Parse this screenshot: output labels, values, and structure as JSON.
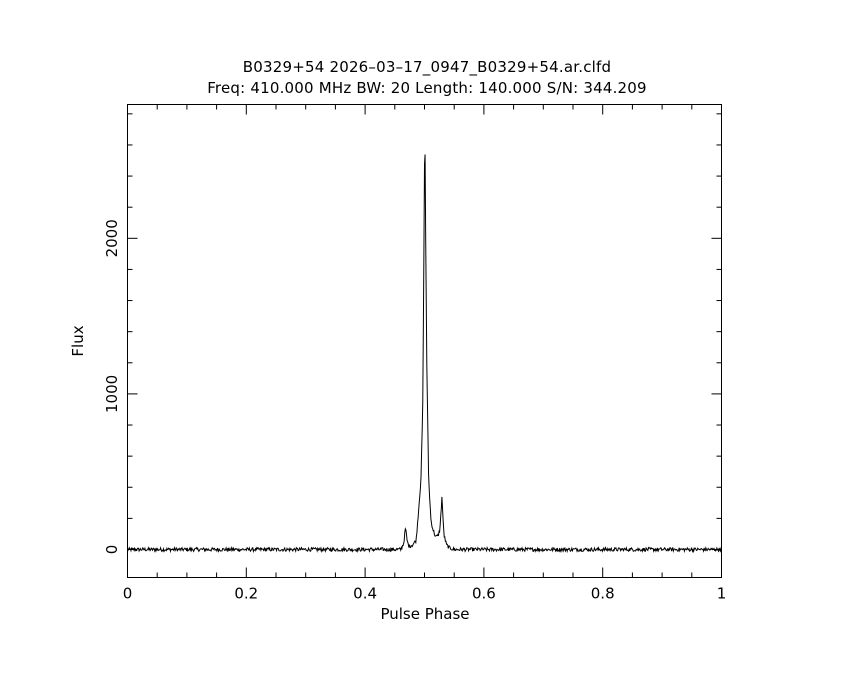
{
  "chart_data": {
    "type": "line",
    "title": "B0329+54 2026–03–17_0947_B0329+54.ar.clfd",
    "subtitle": "Freq: 410.000 MHz BW: 20 Length: 140.000 S/N: 344.209",
    "xlabel": "Pulse Phase",
    "ylabel": "Flux",
    "xlim": [
      0,
      1
    ],
    "ylim": [
      -180,
      2860
    ],
    "x_ticks": [
      0,
      0.2,
      0.4,
      0.6,
      0.8,
      1
    ],
    "x_tick_labels": [
      "0",
      "0.2",
      "0.4",
      "0.6",
      "0.8",
      "1"
    ],
    "y_ticks": [
      0,
      1000,
      2000
    ],
    "y_tick_labels": [
      "0",
      "1000",
      "2000"
    ],
    "grid": false,
    "series": [
      {
        "baseline_noise_amplitude": 12,
        "points": [
          [
            0.0,
            0
          ],
          [
            0.46,
            0
          ],
          [
            0.465,
            40
          ],
          [
            0.468,
            140
          ],
          [
            0.471,
            50
          ],
          [
            0.474,
            20
          ],
          [
            0.48,
            30
          ],
          [
            0.486,
            60
          ],
          [
            0.49,
            250
          ],
          [
            0.494,
            450
          ],
          [
            0.497,
            900
          ],
          [
            0.499,
            1900
          ],
          [
            0.5005,
            2780
          ],
          [
            0.502,
            2000
          ],
          [
            0.504,
            1150
          ],
          [
            0.507,
            450
          ],
          [
            0.511,
            180
          ],
          [
            0.515,
            120
          ],
          [
            0.519,
            80
          ],
          [
            0.523,
            90
          ],
          [
            0.526,
            130
          ],
          [
            0.528,
            250
          ],
          [
            0.5295,
            350
          ],
          [
            0.531,
            200
          ],
          [
            0.533,
            90
          ],
          [
            0.537,
            30
          ],
          [
            0.542,
            10
          ],
          [
            0.55,
            0
          ],
          [
            1.0,
            0
          ]
        ]
      }
    ]
  }
}
